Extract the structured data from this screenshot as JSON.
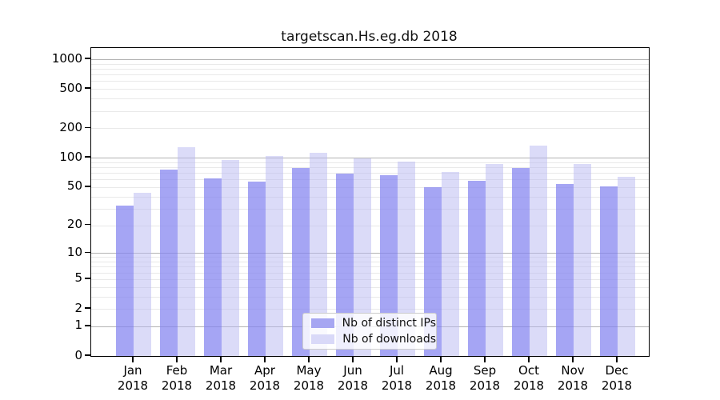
{
  "title": "targetscan.Hs.eg.db 2018",
  "chart_data": {
    "type": "bar",
    "title": "targetscan.Hs.eg.db 2018",
    "categories": [
      "Jan",
      "Feb",
      "Mar",
      "Apr",
      "May",
      "Jun",
      "Jul",
      "Aug",
      "Sep",
      "Oct",
      "Nov",
      "Dec"
    ],
    "year": "2018",
    "series": [
      {
        "name": "Nb of distinct IPs",
        "bar_color": "rgba(130,130,240,0.72)",
        "swatch_color": "#a6a6f2",
        "values": [
          32,
          76,
          61,
          57,
          79,
          69,
          66,
          50,
          58,
          79,
          54,
          51
        ]
      },
      {
        "name": "Nb of downloads",
        "bar_color": "rgba(183,183,241,0.5)",
        "swatch_color": "#d9d9f8",
        "values": [
          44,
          128,
          95,
          105,
          113,
          98,
          92,
          71,
          87,
          132,
          86,
          64
        ]
      }
    ],
    "yticks": [
      0,
      1,
      2,
      5,
      10,
      20,
      50,
      100,
      200,
      500,
      1000
    ],
    "scale": "log1p",
    "ylim": [
      0,
      1300
    ],
    "grid": {
      "major": [
        1,
        10,
        100,
        1000
      ],
      "minor": [
        2,
        3,
        4,
        5,
        6,
        7,
        8,
        9,
        20,
        30,
        40,
        50,
        60,
        70,
        80,
        90,
        200,
        300,
        400,
        500,
        600,
        700,
        800,
        900
      ],
      "major_color": "#b3b3b3",
      "minor_color": "#e9e9e9"
    },
    "legend_position": "lower center",
    "xlabel": "",
    "ylabel": ""
  }
}
